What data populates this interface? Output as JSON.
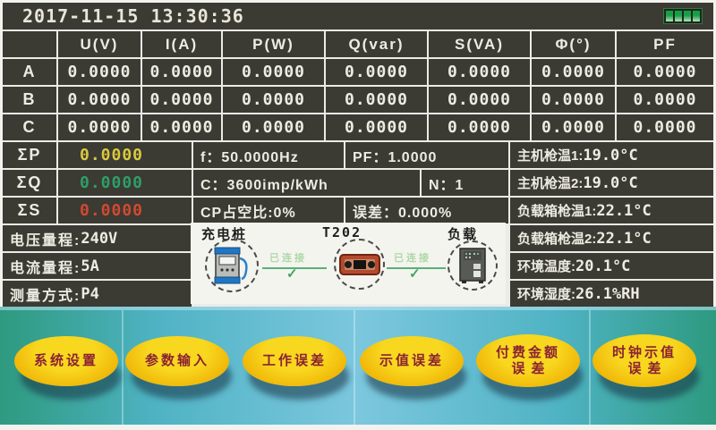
{
  "titlebar": {
    "datetime": "2017-11-15 13:30:36"
  },
  "battery": {
    "level_bars": 4,
    "color": "#15a046"
  },
  "phase_table": {
    "headers": [
      "U(V)",
      "I(A)",
      "P(W)",
      "Q(var)",
      "S(VA)",
      "Φ(°)",
      "PF"
    ],
    "rows": [
      {
        "label": "A",
        "color": "#d9c93f",
        "values": [
          "0.0000",
          "0.0000",
          "0.0000",
          "0.0000",
          "0.0000",
          "0.0000",
          "0.0000"
        ]
      },
      {
        "label": "B",
        "color": "#2f9e68",
        "values": [
          "0.0000",
          "0.0000",
          "0.0000",
          "0.0000",
          "0.0000",
          "0.0000",
          "0.0000"
        ]
      },
      {
        "label": "C",
        "color": "#cf4a31",
        "values": [
          "0.0000",
          "0.0000",
          "0.0000",
          "0.0000",
          "0.0000",
          "0.0000",
          "0.0000"
        ]
      }
    ]
  },
  "summary": {
    "rows": [
      {
        "label": "ΣP",
        "value": "0.0000",
        "color": "#d9c93f"
      },
      {
        "label": "ΣQ",
        "value": "0.0000",
        "color": "#2f9e68"
      },
      {
        "label": "ΣS",
        "value": "0.0000",
        "color": "#cf4a31"
      }
    ],
    "frequency": "f：50.0000Hz",
    "power_factor": "PF：1.0000",
    "meter_constant": "C：3600imp/kWh",
    "n_value": "N：1",
    "cp_duty": "CP占空比:0%",
    "error": "误差：0.000%"
  },
  "temperatures": [
    {
      "label": "主机枪温1:",
      "value": "19.0°C"
    },
    {
      "label": "主机枪温2:",
      "value": "19.0°C"
    },
    {
      "label": "负载箱枪温1:",
      "value": "22.1°C"
    },
    {
      "label": "负载箱枪温2:",
      "value": "22.1°C"
    },
    {
      "label": "环境温度:",
      "value": "20.1°C"
    },
    {
      "label": "环境湿度:",
      "value": "26.1%RH"
    }
  ],
  "ranges": [
    {
      "label": "电压量程:",
      "value": "240V"
    },
    {
      "label": "电流量程:",
      "value": "5A"
    },
    {
      "label": "测量方式:",
      "value": "P4"
    }
  ],
  "diagram": {
    "charger_label": "充电桩",
    "tester_label": "T202",
    "load_label": "负载",
    "links": [
      {
        "status": "已连接"
      },
      {
        "status": "已连接"
      }
    ],
    "check_glyph": "✓"
  },
  "buttons": [
    {
      "line1": "系统设置"
    },
    {
      "line1": "参数输入"
    },
    {
      "line1": "工作误差"
    },
    {
      "line1": "示值误差"
    },
    {
      "line1": "付费金额",
      "line2": "误差"
    },
    {
      "line1": "时钟示值",
      "line2": "误差"
    }
  ],
  "colors": {
    "cell_bg": "#3b3a33",
    "teal_edge": "#2e9a7f",
    "teal_center": "#7cc7de",
    "button_yellow": "#f1ba0a",
    "button_text": "#8b2233",
    "link_green": "#54b277"
  }
}
